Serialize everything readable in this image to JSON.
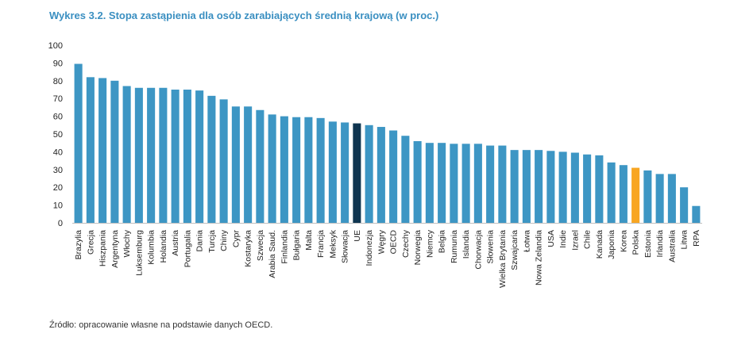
{
  "title": "Wykres 3.2. Stopa zastąpienia dla osób zarabiających średnią krajową (w proc.)",
  "source": "Źródło: opracowanie własne na podstawie danych OECD.",
  "colors": {
    "default": "#3d96c4",
    "eu": "#0f3550",
    "poland": "#f8a622",
    "title": "#3a8fc1"
  },
  "chart_data": {
    "type": "bar",
    "ylim": [
      0,
      100
    ],
    "yticks": [
      0,
      10,
      20,
      30,
      40,
      50,
      60,
      70,
      80,
      90,
      100
    ],
    "categories": [
      "Brazylia",
      "Grecja",
      "Hiszpania",
      "Argentyna",
      "Włochy",
      "Luksemburg",
      "Kolumbia",
      "Holandia",
      "Austria",
      "Portugalia",
      "Dania",
      "Turcja",
      "Chiny",
      "Cypr",
      "Kostaryka",
      "Szwecja",
      "Arabia Saud.",
      "Finlandia",
      "Bułgaria",
      "Malta",
      "Francja",
      "Meksyk",
      "Słowacja",
      "UE",
      "Indonezja",
      "Węgry",
      "OECD",
      "Czechy",
      "Norwegia",
      "Niemcy",
      "Belgia",
      "Rumunia",
      "Islandia",
      "Chorwacja",
      "Słowenia",
      "Wielka Brytania",
      "Szwajcaria",
      "Łotwa",
      "Nowa Zelandia",
      "USA",
      "Indie",
      "Izrael",
      "Chile",
      "Kanada",
      "Japonia",
      "Korea",
      "Polska",
      "Estonia",
      "Irlandia",
      "Australia",
      "Litwa",
      "RPA"
    ],
    "values": [
      89.5,
      82,
      81.5,
      80,
      77,
      76,
      76,
      76,
      75,
      75,
      74.5,
      71.5,
      69.5,
      65.5,
      65.5,
      63.5,
      61,
      60,
      59.5,
      59.5,
      59,
      57,
      56.5,
      56,
      55,
      54,
      52,
      49,
      46,
      45,
      45,
      44.5,
      44.5,
      44.5,
      43.5,
      43.5,
      41,
      41,
      41,
      40.5,
      40,
      39.5,
      38.5,
      38,
      34,
      32.5,
      31,
      29.5,
      27.5,
      27.5,
      20,
      9.5
    ],
    "highlight": {
      "UE": "eu",
      "Polska": "poland"
    }
  }
}
